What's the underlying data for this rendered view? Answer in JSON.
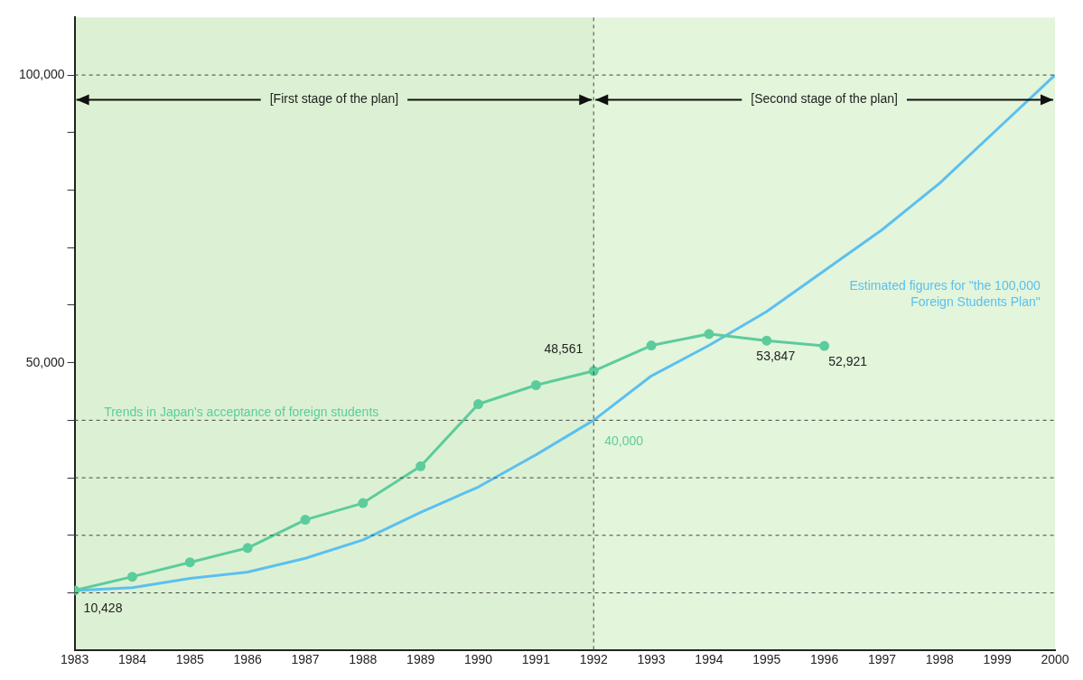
{
  "chart_data": {
    "type": "line",
    "x": [
      1983,
      1984,
      1985,
      1986,
      1987,
      1988,
      1989,
      1990,
      1991,
      1992,
      1993,
      1994,
      1995,
      1996,
      1997,
      1998,
      1999,
      2000
    ],
    "series": [
      {
        "name": "Trends in Japan's acceptance of foreign students",
        "color": "#5ccc9c",
        "marker": "circle",
        "values": [
          10428,
          12800,
          15300,
          17800,
          22700,
          25600,
          32000,
          42800,
          46100,
          48561,
          53000,
          55000,
          53847,
          52921,
          null,
          null,
          null,
          null
        ],
        "value_labels": [
          "10,428",
          null,
          null,
          null,
          null,
          null,
          null,
          null,
          null,
          "48,561",
          null,
          null,
          "53,847",
          "52,921",
          null,
          null,
          null,
          null
        ]
      },
      {
        "name": "Estimated figures for \"the 100,000 Foreign Students Plan\"",
        "color": "#5bc0ef",
        "marker": "none",
        "values": [
          10400,
          10900,
          12500,
          13600,
          16000,
          19200,
          24000,
          28400,
          34000,
          40000,
          47700,
          53000,
          58900,
          66000,
          73100,
          81200,
          90600,
          100000
        ],
        "value_labels": [
          null,
          null,
          null,
          null,
          null,
          null,
          null,
          null,
          null,
          "40,000",
          null,
          null,
          null,
          null,
          null,
          null,
          null,
          null
        ]
      }
    ],
    "xlim": [
      1983,
      2000
    ],
    "xticks": [
      1983,
      1984,
      1985,
      1986,
      1987,
      1988,
      1989,
      1990,
      1991,
      1992,
      1993,
      1994,
      1995,
      1996,
      1997,
      1998,
      1999,
      2000
    ],
    "ylim": [
      0,
      110000
    ],
    "yticks": [
      {
        "value": 10000,
        "label": null
      },
      {
        "value": 20000,
        "label": null
      },
      {
        "value": 30000,
        "label": null
      },
      {
        "value": 40000,
        "label": null
      },
      {
        "value": 50000,
        "label": "50,000"
      },
      {
        "value": 60000,
        "label": null
      },
      {
        "value": 70000,
        "label": null
      },
      {
        "value": 80000,
        "label": null
      },
      {
        "value": 90000,
        "label": null
      },
      {
        "value": 100000,
        "label": "100,000"
      }
    ],
    "grid": false,
    "legend": false,
    "ref_lines": [
      {
        "axis": "x",
        "value": 1992,
        "line_style": "dashed"
      },
      {
        "axis": "y",
        "value": 100000,
        "line_style": "dashed"
      },
      {
        "axis": "y",
        "value": 40000,
        "line_style": "dashed"
      },
      {
        "axis": "y",
        "value": 30000,
        "line_style": "dashed"
      },
      {
        "axis": "y",
        "value": 20000,
        "line_style": "dashed"
      },
      {
        "axis": "y",
        "value": 10000,
        "line_style": "dashed"
      }
    ],
    "bands": [
      {
        "axis": "x",
        "from": 1983,
        "to": 1992,
        "label": "[First stage of the plan]",
        "color": "#dcf1d3"
      },
      {
        "axis": "x",
        "from": 1992,
        "to": 2000,
        "label": "[Second stage of the plan]",
        "color": "#e3f5db"
      }
    ]
  }
}
